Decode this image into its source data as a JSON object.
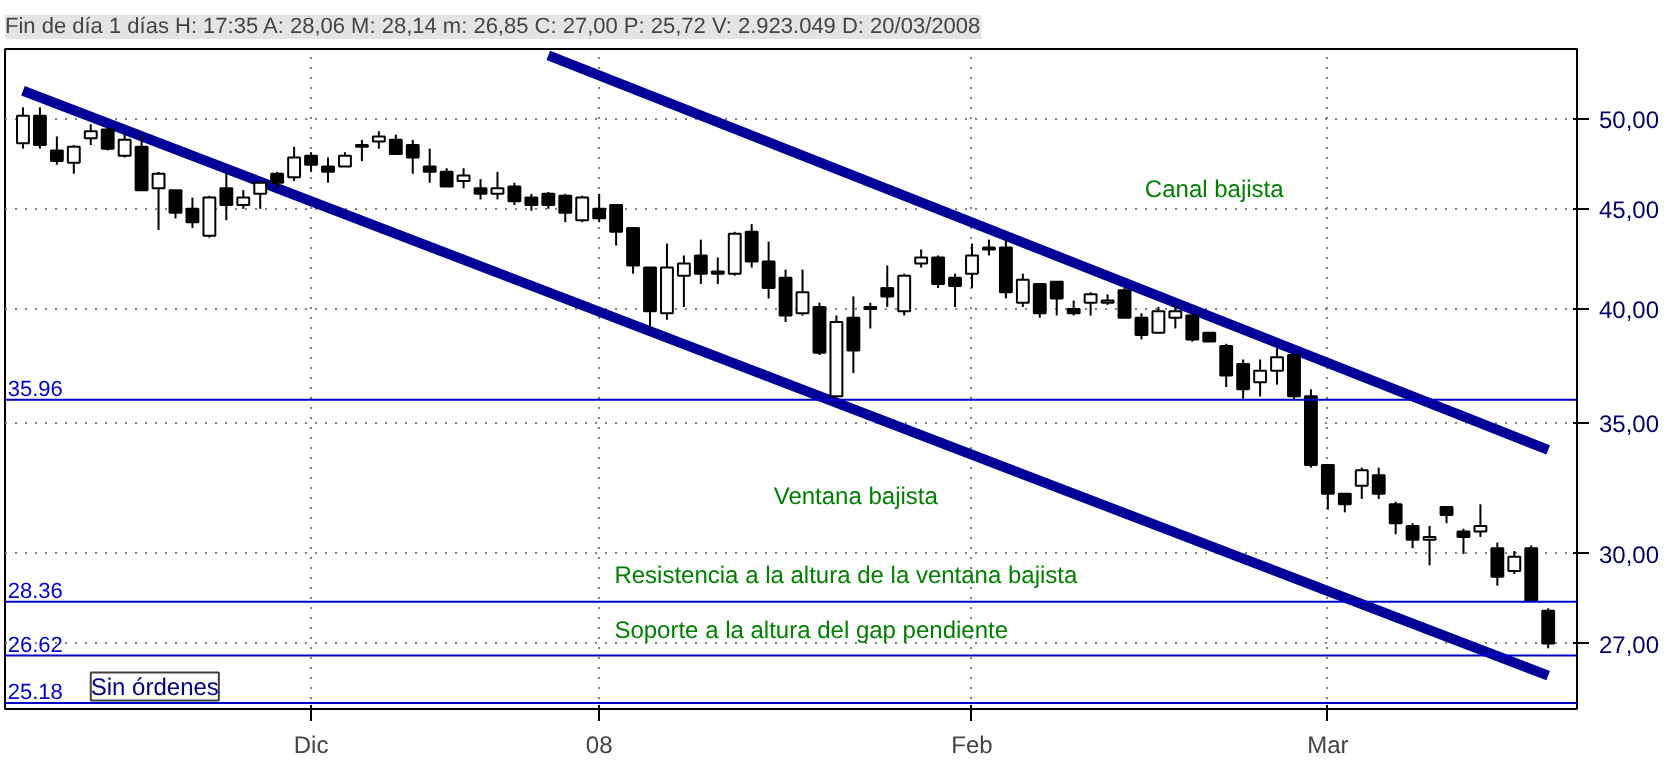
{
  "chart_data": {
    "type": "candlestick",
    "title": "Fin de día 1 días H: 17:35 A: 28,06 M: 28,14 m: 26,85 C: 27,00 P: 25,72 V: 2.923.049 D: 20/03/2008",
    "categories": [
      null,
      null,
      null,
      null,
      null,
      null,
      null,
      null,
      null,
      null,
      null,
      null,
      null,
      null,
      null,
      null,
      null,
      "Dic",
      null,
      null,
      null,
      null,
      null,
      null,
      null,
      null,
      null,
      null,
      null,
      null,
      null,
      null,
      null,
      null,
      "08",
      null,
      null,
      null,
      null,
      null,
      null,
      null,
      null,
      null,
      null,
      null,
      null,
      null,
      null,
      null,
      null,
      null,
      null,
      null,
      null,
      null,
      "Feb",
      null,
      null,
      null,
      null,
      null,
      null,
      null,
      null,
      null,
      null,
      null,
      null,
      null,
      null,
      null,
      null,
      null,
      null,
      null,
      null,
      "Mar",
      null,
      null,
      null,
      null,
      null,
      null,
      null,
      null,
      null,
      null,
      null,
      null,
      null
    ],
    "ohlc": [
      [
        48.6,
        50.7,
        48.3,
        50.2
      ],
      [
        50.2,
        50.7,
        48.3,
        48.5
      ],
      [
        48.2,
        49.0,
        47.4,
        47.6
      ],
      [
        47.5,
        48.5,
        46.9,
        48.4
      ],
      [
        48.9,
        49.7,
        48.5,
        49.3
      ],
      [
        49.4,
        49.5,
        48.2,
        48.3
      ],
      [
        47.9,
        49.1,
        47.8,
        48.8
      ],
      [
        48.4,
        49.1,
        46.0,
        46.0
      ],
      [
        46.1,
        47.0,
        43.9,
        46.9
      ],
      [
        46.0,
        46.0,
        44.5,
        44.8
      ],
      [
        45.0,
        45.6,
        44.0,
        44.3
      ],
      [
        43.6,
        45.7,
        43.5,
        45.6
      ],
      [
        46.1,
        46.9,
        44.4,
        45.2
      ],
      [
        45.2,
        46.0,
        45.0,
        45.6
      ],
      [
        45.8,
        46.5,
        45.0,
        46.4
      ],
      [
        46.9,
        47.0,
        46.1,
        46.4
      ],
      [
        46.7,
        48.4,
        46.5,
        47.8
      ],
      [
        47.9,
        48.1,
        47.0,
        47.4
      ],
      [
        47.3,
        47.8,
        46.4,
        47.0
      ],
      [
        47.3,
        48.1,
        47.3,
        47.9
      ],
      [
        48.4,
        48.8,
        47.6,
        48.5
      ],
      [
        48.7,
        49.3,
        48.3,
        49.0
      ],
      [
        48.8,
        49.1,
        48.0,
        48.0
      ],
      [
        48.5,
        48.8,
        46.9,
        47.8
      ],
      [
        47.3,
        48.3,
        46.4,
        47.0
      ],
      [
        47.0,
        47.2,
        46.2,
        46.2
      ],
      [
        46.5,
        47.2,
        46.1,
        46.8
      ],
      [
        46.1,
        46.6,
        45.5,
        45.8
      ],
      [
        45.8,
        47.0,
        45.5,
        46.1
      ],
      [
        46.2,
        46.4,
        45.2,
        45.4
      ],
      [
        45.6,
        45.8,
        44.9,
        45.2
      ],
      [
        45.8,
        45.9,
        45.0,
        45.2
      ],
      [
        45.7,
        45.8,
        44.3,
        44.8
      ],
      [
        44.4,
        45.7,
        44.3,
        45.6
      ],
      [
        45.0,
        45.8,
        44.3,
        44.5
      ],
      [
        45.2,
        45.2,
        43.1,
        43.8
      ],
      [
        44.0,
        44.0,
        41.7,
        42.1
      ],
      [
        42.0,
        42.0,
        39.1,
        39.9
      ],
      [
        39.8,
        43.2,
        39.5,
        42.0
      ],
      [
        41.6,
        42.6,
        40.1,
        42.2
      ],
      [
        42.6,
        43.4,
        41.2,
        41.7
      ],
      [
        41.8,
        42.5,
        41.2,
        41.7
      ],
      [
        41.7,
        43.8,
        41.6,
        43.7
      ],
      [
        43.8,
        44.2,
        42.0,
        42.3
      ],
      [
        42.3,
        43.3,
        40.5,
        41.0
      ],
      [
        41.5,
        41.9,
        39.4,
        39.7
      ],
      [
        39.8,
        41.9,
        39.7,
        40.8
      ],
      [
        40.1,
        40.3,
        37.9,
        38.0
      ],
      [
        36.1,
        39.7,
        36.0,
        39.4
      ],
      [
        39.6,
        40.6,
        37.1,
        38.1
      ],
      [
        40.0,
        40.3,
        39.1,
        40.1
      ],
      [
        41.0,
        42.1,
        40.1,
        40.6
      ],
      [
        39.9,
        41.7,
        39.7,
        41.6
      ],
      [
        42.2,
        42.9,
        42.0,
        42.5
      ],
      [
        42.5,
        42.6,
        41.0,
        41.2
      ],
      [
        41.5,
        41.7,
        40.1,
        41.1
      ],
      [
        41.7,
        43.2,
        41.0,
        42.6
      ],
      [
        43.0,
        43.4,
        42.6,
        42.9
      ],
      [
        43.0,
        43.4,
        40.5,
        40.8
      ],
      [
        40.3,
        41.7,
        40.1,
        41.4
      ],
      [
        41.2,
        41.2,
        39.6,
        39.8
      ],
      [
        41.3,
        41.3,
        39.7,
        40.5
      ],
      [
        40.0,
        40.4,
        39.7,
        39.8
      ],
      [
        40.3,
        40.8,
        39.7,
        40.7
      ],
      [
        40.3,
        40.7,
        40.2,
        40.4
      ],
      [
        40.9,
        41.0,
        39.6,
        39.6
      ],
      [
        39.6,
        39.8,
        38.6,
        38.8
      ],
      [
        38.9,
        40.1,
        38.9,
        39.9
      ],
      [
        39.6,
        40.2,
        39.1,
        39.9
      ],
      [
        39.7,
        39.8,
        38.5,
        38.6
      ],
      [
        38.9,
        38.9,
        38.5,
        38.5
      ],
      [
        38.3,
        38.4,
        36.5,
        37.0
      ],
      [
        37.5,
        37.7,
        36.0,
        36.4
      ],
      [
        36.7,
        37.7,
        36.1,
        37.2
      ],
      [
        37.2,
        38.2,
        36.6,
        37.8
      ],
      [
        37.9,
        37.9,
        36.0,
        36.1
      ],
      [
        36.1,
        36.4,
        33.2,
        33.3
      ],
      [
        33.3,
        33.3,
        31.6,
        32.2
      ],
      [
        32.2,
        32.2,
        31.5,
        31.8
      ],
      [
        32.5,
        33.2,
        32.0,
        33.1
      ],
      [
        32.9,
        33.2,
        32.0,
        32.2
      ],
      [
        31.8,
        31.9,
        30.7,
        31.1
      ],
      [
        31.0,
        31.1,
        30.2,
        30.5
      ],
      [
        30.5,
        31.0,
        29.6,
        30.6
      ],
      [
        31.7,
        31.7,
        31.1,
        31.4
      ],
      [
        30.8,
        30.9,
        30.0,
        30.6
      ],
      [
        30.8,
        31.8,
        30.6,
        31.0
      ],
      [
        30.2,
        30.4,
        28.9,
        29.2
      ],
      [
        29.4,
        30.1,
        29.3,
        29.9
      ],
      [
        30.2,
        30.3,
        28.4,
        28.4
      ],
      [
        28.06,
        28.14,
        26.85,
        27.0
      ]
    ],
    "series": [
      {
        "type": "line",
        "color": "#000099",
        "values": [
          51.7,
          null,
          null,
          null,
          null,
          null,
          null,
          null,
          null,
          null,
          null,
          null,
          null,
          null,
          null,
          null,
          null,
          null,
          null,
          null,
          null,
          null,
          null,
          null,
          null,
          null,
          null,
          null,
          null,
          null,
          null,
          null,
          null,
          null,
          null,
          null,
          null,
          null,
          null,
          null,
          null,
          null,
          null,
          null,
          null,
          null,
          null,
          null,
          null,
          null,
          null,
          null,
          null,
          null,
          null,
          null,
          null,
          null,
          null,
          null,
          null,
          null,
          null,
          null,
          null,
          null,
          null,
          null,
          null,
          null,
          null,
          null,
          null,
          null,
          null,
          null,
          null,
          null,
          null,
          null,
          null,
          null,
          null,
          null,
          null,
          null,
          null,
          null,
          null,
          null,
          26.0
        ]
      },
      {
        "type": "line",
        "color": "#000099",
        "values": [
          null,
          null,
          null,
          null,
          null,
          null,
          null,
          null,
          null,
          null,
          null,
          null,
          null,
          null,
          null,
          null,
          null,
          null,
          null,
          null,
          null,
          null,
          null,
          null,
          null,
          null,
          null,
          null,
          null,
          null,
          null,
          53.9,
          null,
          null,
          null,
          null,
          null,
          null,
          null,
          null,
          null,
          null,
          null,
          null,
          null,
          null,
          null,
          null,
          null,
          null,
          null,
          null,
          null,
          null,
          null,
          null,
          null,
          null,
          null,
          null,
          null,
          null,
          null,
          null,
          null,
          null,
          null,
          null,
          null,
          null,
          null,
          null,
          null,
          null,
          null,
          null,
          null,
          null,
          null,
          null,
          null,
          null,
          null,
          null,
          null,
          null,
          null,
          null,
          null,
          null,
          33.9
        ]
      }
    ],
    "ylim": [
      25.0,
      54.3
    ],
    "yticks": [
      {
        "value": 27.0,
        "label": "27,00"
      },
      {
        "value": 30,
        "label": "30,00"
      },
      {
        "value": 35,
        "label": "35,00"
      },
      {
        "value": 40,
        "label": "40,00"
      },
      {
        "value": 45,
        "label": "45,00"
      },
      {
        "value": 50,
        "label": "50,00"
      }
    ],
    "log": true,
    "grid": true,
    "ref_lines": [
      {
        "axis": "y",
        "value": 35.96,
        "label": "35.96",
        "color": "#0000cc"
      },
      {
        "axis": "y",
        "value": 28.36,
        "label": "28.36",
        "color": "#0000cc"
      },
      {
        "axis": "y",
        "value": 26.62,
        "label": "26.62",
        "color": "#0000cc"
      },
      {
        "axis": "y",
        "value": 25.18,
        "label": "25.18",
        "color": "#0000cc"
      }
    ],
    "annotations": [
      "Canal bajista",
      "Ventana bajista",
      "Resistencia a la altura de la ventana bajista",
      "Soporte a la altura del gap pendiente",
      "Sin órdenes"
    ]
  }
}
